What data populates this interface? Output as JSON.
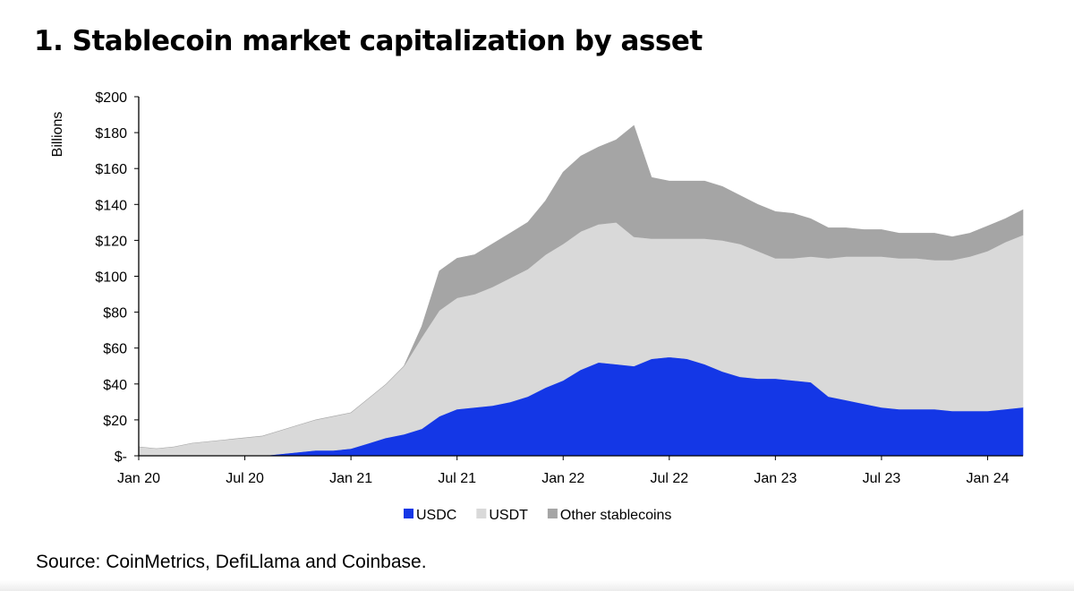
{
  "title": "1. Stablecoin market capitalization by asset",
  "source": "Source: CoinMetrics, DefiLlama and Coinbase.",
  "chart_data": {
    "type": "area",
    "stacked": true,
    "title": "1. Stablecoin market capitalization by asset",
    "xlabel": "",
    "ylabel": "Billions",
    "ylim": [
      0,
      200
    ],
    "xlim": [
      "2020-01",
      "2024-03"
    ],
    "grid": false,
    "legend_position": "bottom",
    "y_ticks": [
      0,
      20,
      40,
      60,
      80,
      100,
      120,
      140,
      160,
      180,
      200
    ],
    "y_tick_labels": [
      "$-",
      "$20",
      "$40",
      "$60",
      "$80",
      "$100",
      "$120",
      "$140",
      "$160",
      "$180",
      "$200"
    ],
    "x_ticks": [
      "2020-01",
      "2020-07",
      "2021-01",
      "2021-07",
      "2022-01",
      "2022-07",
      "2023-01",
      "2023-07",
      "2024-01"
    ],
    "x_tick_labels": [
      "Jan 20",
      "Jul 20",
      "Jan 21",
      "Jul 21",
      "Jan 22",
      "Jul 22",
      "Jan 23",
      "Jul 23",
      "Jan 24"
    ],
    "x": [
      "2020-01",
      "2020-02",
      "2020-03",
      "2020-04",
      "2020-05",
      "2020-06",
      "2020-07",
      "2020-08",
      "2020-09",
      "2020-10",
      "2020-11",
      "2020-12",
      "2021-01",
      "2021-02",
      "2021-03",
      "2021-04",
      "2021-05",
      "2021-06",
      "2021-07",
      "2021-08",
      "2021-09",
      "2021-10",
      "2021-11",
      "2021-12",
      "2022-01",
      "2022-02",
      "2022-03",
      "2022-04",
      "2022-05",
      "2022-06",
      "2022-07",
      "2022-08",
      "2022-09",
      "2022-10",
      "2022-11",
      "2022-12",
      "2023-01",
      "2023-02",
      "2023-03",
      "2023-04",
      "2023-05",
      "2023-06",
      "2023-07",
      "2023-08",
      "2023-09",
      "2023-10",
      "2023-11",
      "2023-12",
      "2024-01",
      "2024-02",
      "2024-03"
    ],
    "series": [
      {
        "name": "USDC",
        "color": "#1437e6",
        "values": [
          0,
          0,
          0,
          0,
          0,
          0,
          0,
          0,
          1,
          2,
          3,
          3,
          4,
          7,
          10,
          12,
          15,
          22,
          26,
          27,
          28,
          30,
          33,
          38,
          42,
          48,
          52,
          51,
          50,
          54,
          55,
          54,
          51,
          47,
          44,
          43,
          43,
          42,
          41,
          33,
          31,
          29,
          27,
          26,
          26,
          26,
          25,
          25,
          25,
          26,
          27
        ]
      },
      {
        "name": "USDT",
        "color": "#d9d9d9",
        "values": [
          5,
          4,
          5,
          7,
          8,
          9,
          10,
          11,
          13,
          15,
          17,
          19,
          20,
          25,
          30,
          38,
          51,
          59,
          62,
          63,
          66,
          69,
          71,
          74,
          76,
          77,
          77,
          79,
          72,
          67,
          66,
          67,
          70,
          73,
          74,
          71,
          67,
          68,
          70,
          77,
          80,
          82,
          84,
          84,
          84,
          83,
          84,
          86,
          89,
          93,
          96
        ]
      },
      {
        "name": "Other stablecoins",
        "color": "#a5a5a5",
        "values": [
          0,
          0,
          0,
          0,
          0,
          0,
          0,
          0,
          0,
          0,
          0,
          0,
          0,
          0,
          0,
          0,
          6,
          22,
          22,
          22,
          24,
          25,
          26,
          30,
          40,
          42,
          43,
          46,
          62,
          34,
          32,
          32,
          32,
          30,
          27,
          26,
          26,
          25,
          21,
          17,
          16,
          15,
          15,
          14,
          14,
          15,
          13,
          13,
          14,
          13,
          14
        ]
      }
    ]
  }
}
